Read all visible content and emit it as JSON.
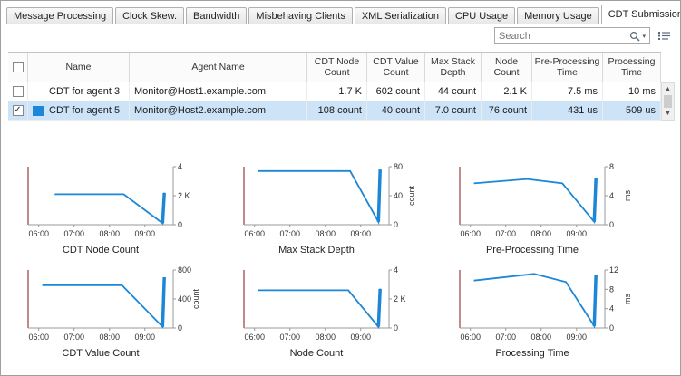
{
  "colors": {
    "series": "#1b87d6",
    "axis_left": "#9a3b3b",
    "axis_gray": "#999999",
    "selected_row_bg": "#cce3f8"
  },
  "tabs": [
    {
      "label": "Message Processing",
      "active": false
    },
    {
      "label": "Clock Skew.",
      "active": false
    },
    {
      "label": "Bandwidth",
      "active": false
    },
    {
      "label": "Misbehaving Clients",
      "active": false
    },
    {
      "label": "XML Serialization",
      "active": false
    },
    {
      "label": "CPU Usage",
      "active": false
    },
    {
      "label": "Memory Usage",
      "active": false
    },
    {
      "label": "CDT Submission",
      "active": true
    }
  ],
  "search": {
    "placeholder": "Search"
  },
  "table": {
    "columns": [
      "Name",
      "Agent Name",
      "CDT Node\nCount",
      "CDT Value\nCount",
      "Max Stack\nDepth",
      "Node\nCount",
      "Pre-Processing\nTime",
      "Processing\nTime"
    ],
    "rows": [
      {
        "checked": false,
        "selected": false,
        "color": "",
        "name": "CDT for agent 3",
        "agent": "Monitor@Host1.example.com",
        "cdt_node_count": "1.7 K",
        "cdt_value_count": "602 count",
        "max_stack_depth": "44 count",
        "node_count": "2.1 K",
        "pre_processing_time": "7.5 ms",
        "processing_time": "10 ms"
      },
      {
        "checked": true,
        "selected": true,
        "color": "#1b87d6",
        "name": "CDT for agent 5",
        "agent": "Monitor@Host2.example.com",
        "cdt_node_count": "108 count",
        "cdt_value_count": "40 count",
        "max_stack_depth": "7.0 count",
        "node_count": "76 count",
        "pre_processing_time": "431 us",
        "processing_time": "509 us"
      }
    ]
  },
  "chart_data": [
    {
      "type": "line",
      "title": "CDT Node Count",
      "xlim": [
        5.7,
        9.8
      ],
      "ylim": [
        0,
        4000
      ],
      "y_unit": "",
      "x_ticks": [
        {
          "value": 6,
          "label": "06:00"
        },
        {
          "value": 7,
          "label": "07:00"
        },
        {
          "value": 8,
          "label": "08:00"
        },
        {
          "value": 9,
          "label": "09:00"
        }
      ],
      "y_ticks": [
        {
          "value": 4000,
          "label": "4"
        },
        {
          "value": 2000,
          "label": "2 K"
        },
        {
          "value": 0,
          "label": "0"
        }
      ],
      "points": [
        [
          6.45,
          2100
        ],
        [
          8.4,
          2100
        ],
        [
          9.5,
          100
        ],
        [
          9.55,
          2200
        ]
      ]
    },
    {
      "type": "line",
      "title": "Max Stack Depth",
      "xlim": [
        5.7,
        9.8
      ],
      "ylim": [
        0,
        80
      ],
      "y_unit": "count",
      "x_ticks": [
        {
          "value": 6,
          "label": "06:00"
        },
        {
          "value": 7,
          "label": "07:00"
        },
        {
          "value": 8,
          "label": "08:00"
        },
        {
          "value": 9,
          "label": "09:00"
        }
      ],
      "y_ticks": [
        {
          "value": 80,
          "label": "80"
        },
        {
          "value": 40,
          "label": "40"
        },
        {
          "value": 0,
          "label": "0"
        }
      ],
      "points": [
        [
          6.1,
          74
        ],
        [
          8.7,
          74
        ],
        [
          9.5,
          4
        ],
        [
          9.55,
          76
        ]
      ]
    },
    {
      "type": "line",
      "title": "Pre-Processing Time",
      "xlim": [
        5.7,
        9.8
      ],
      "ylim": [
        0,
        8
      ],
      "y_unit": "ms",
      "x_ticks": [
        {
          "value": 6,
          "label": "06:00"
        },
        {
          "value": 7,
          "label": "07:00"
        },
        {
          "value": 8,
          "label": "08:00"
        },
        {
          "value": 9,
          "label": "09:00"
        }
      ],
      "y_ticks": [
        {
          "value": 8,
          "label": "8"
        },
        {
          "value": 4,
          "label": "4"
        },
        {
          "value": 0,
          "label": "0"
        }
      ],
      "points": [
        [
          6.1,
          5.7
        ],
        [
          7.6,
          6.3
        ],
        [
          8.6,
          5.7
        ],
        [
          9.5,
          0.4
        ],
        [
          9.55,
          6.4
        ]
      ]
    },
    {
      "type": "line",
      "title": "CDT Value Count",
      "xlim": [
        5.7,
        9.8
      ],
      "ylim": [
        0,
        800
      ],
      "y_unit": "count",
      "x_ticks": [
        {
          "value": 6,
          "label": "06:00"
        },
        {
          "value": 7,
          "label": "07:00"
        },
        {
          "value": 8,
          "label": "08:00"
        },
        {
          "value": 9,
          "label": "09:00"
        }
      ],
      "y_ticks": [
        {
          "value": 800,
          "label": "800"
        },
        {
          "value": 400,
          "label": "400"
        },
        {
          "value": 0,
          "label": "0"
        }
      ],
      "points": [
        [
          6.1,
          590
        ],
        [
          8.35,
          590
        ],
        [
          9.5,
          15
        ],
        [
          9.55,
          700
        ]
      ]
    },
    {
      "type": "line",
      "title": "Node Count",
      "xlim": [
        5.7,
        9.8
      ],
      "ylim": [
        0,
        4000
      ],
      "y_unit": "",
      "x_ticks": [
        {
          "value": 6,
          "label": "06:00"
        },
        {
          "value": 7,
          "label": "07:00"
        },
        {
          "value": 8,
          "label": "08:00"
        },
        {
          "value": 9,
          "label": "09:00"
        }
      ],
      "y_ticks": [
        {
          "value": 4000,
          "label": "4"
        },
        {
          "value": 2000,
          "label": "2 K"
        },
        {
          "value": 0,
          "label": "0"
        }
      ],
      "points": [
        [
          6.1,
          2600
        ],
        [
          8.65,
          2600
        ],
        [
          9.5,
          80
        ],
        [
          9.55,
          2700
        ]
      ]
    },
    {
      "type": "line",
      "title": "Processing Time",
      "xlim": [
        5.7,
        9.8
      ],
      "ylim": [
        0,
        12
      ],
      "y_unit": "ms",
      "x_ticks": [
        {
          "value": 6,
          "label": "06:00"
        },
        {
          "value": 7,
          "label": "07:00"
        },
        {
          "value": 8,
          "label": "08:00"
        },
        {
          "value": 9,
          "label": "09:00"
        }
      ],
      "y_ticks": [
        {
          "value": 12,
          "label": "12"
        },
        {
          "value": 8,
          "label": "8"
        },
        {
          "value": 4,
          "label": "4"
        },
        {
          "value": 0,
          "label": "0"
        }
      ],
      "points": [
        [
          6.1,
          9.8
        ],
        [
          7.8,
          11.2
        ],
        [
          8.7,
          9.5
        ],
        [
          9.5,
          0.4
        ],
        [
          9.55,
          11
        ]
      ]
    }
  ],
  "scrollbar": {
    "up": "▲",
    "down": "▼"
  }
}
